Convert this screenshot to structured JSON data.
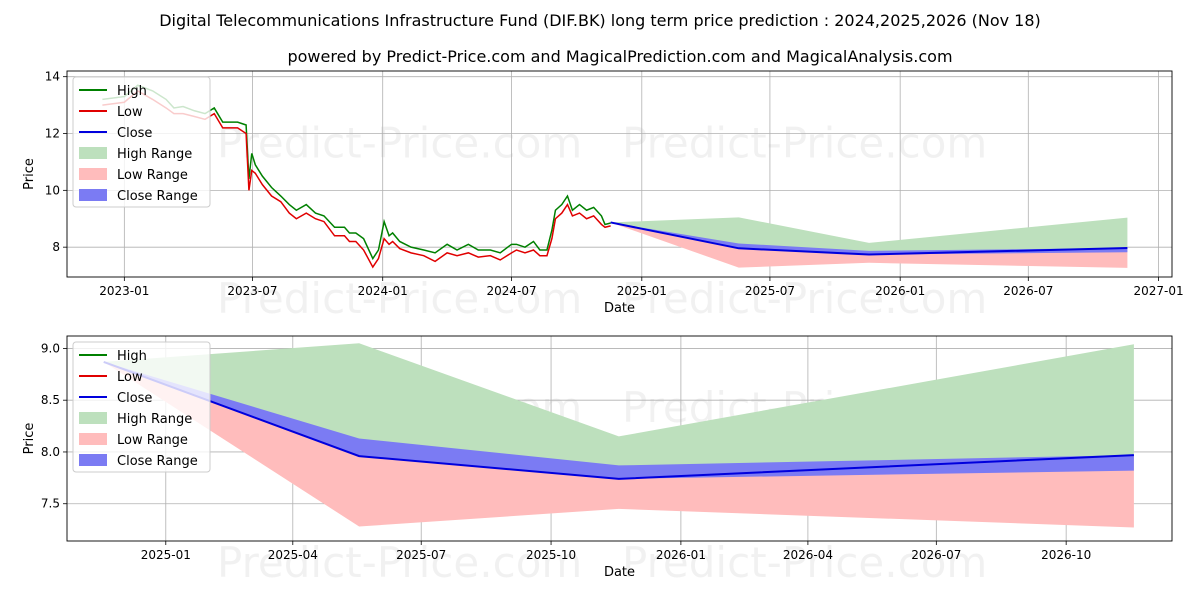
{
  "title": "Digital Telecommunications Infrastructure Fund (DIF.BK) long term price prediction : 2024,2025,2026 (Nov 18)",
  "subtitle": "powered by Predict-Price.com and MagicalPrediction.com and MagicalAnalysis.com",
  "watermark": "Predict-Price.com",
  "colors": {
    "high": "#008000",
    "low": "#e00000",
    "close": "#0000dd",
    "high_range": "#bde0bd",
    "low_range": "#ffbcbc",
    "close_range": "#7b7bf3"
  },
  "chart_data": [
    {
      "type": "line",
      "xlabel": "Date",
      "ylabel": "Price",
      "xticks": [
        "2023-01",
        "2023-07",
        "2024-01",
        "2024-07",
        "2025-01",
        "2025-07",
        "2026-01",
        "2026-07",
        "2027-01"
      ],
      "yticks": [
        8,
        10,
        12,
        14
      ],
      "xlim": [
        "2022-10-12",
        "2027-01-20"
      ],
      "ylim": [
        6.95,
        14.2
      ],
      "grid": true,
      "legend": "upper-left",
      "legend_entries": [
        "High",
        "Low",
        "Close",
        "High Range",
        "Low Range",
        "Close Range"
      ],
      "history": {
        "dates": [
          "2022-12-01",
          "2023-01-01",
          "2023-01-20",
          "2023-02-10",
          "2023-03-01",
          "2023-03-12",
          "2023-03-25",
          "2023-04-10",
          "2023-04-25",
          "2023-05-08",
          "2023-05-20",
          "2023-06-10",
          "2023-06-22",
          "2023-06-26",
          "2023-06-30",
          "2023-07-05",
          "2023-07-15",
          "2023-07-28",
          "2023-08-10",
          "2023-08-22",
          "2023-09-01",
          "2023-09-15",
          "2023-09-28",
          "2023-10-10",
          "2023-10-25",
          "2023-11-08",
          "2023-11-15",
          "2023-11-24",
          "2023-12-05",
          "2023-12-18",
          "2023-12-26",
          "2024-01-03",
          "2024-01-10",
          "2024-01-15",
          "2024-01-25",
          "2024-02-10",
          "2024-02-28",
          "2024-03-15",
          "2024-04-01",
          "2024-04-15",
          "2024-05-01",
          "2024-05-15",
          "2024-06-01",
          "2024-06-15",
          "2024-07-01",
          "2024-07-08",
          "2024-07-20",
          "2024-08-01",
          "2024-08-10",
          "2024-08-20",
          "2024-08-27",
          "2024-09-01",
          "2024-09-10",
          "2024-09-18",
          "2024-09-25",
          "2024-10-05",
          "2024-10-15",
          "2024-10-25",
          "2024-11-05",
          "2024-11-10",
          "2024-11-18"
        ],
        "high": [
          13.2,
          13.3,
          13.7,
          13.5,
          13.2,
          12.9,
          12.95,
          12.8,
          12.7,
          12.9,
          12.4,
          12.4,
          12.3,
          10.4,
          11.3,
          10.9,
          10.5,
          10.1,
          9.8,
          9.5,
          9.3,
          9.5,
          9.2,
          9.1,
          8.7,
          8.7,
          8.5,
          8.5,
          8.3,
          7.6,
          7.9,
          8.9,
          8.4,
          8.5,
          8.2,
          8.0,
          7.9,
          7.8,
          8.1,
          7.9,
          8.1,
          7.9,
          7.9,
          7.8,
          8.1,
          8.1,
          8.0,
          8.2,
          7.9,
          7.9,
          8.6,
          9.3,
          9.5,
          9.8,
          9.3,
          9.5,
          9.3,
          9.4,
          9.1,
          8.8,
          8.85
        ],
        "low": [
          13.0,
          13.1,
          13.5,
          13.2,
          12.9,
          12.7,
          12.7,
          12.6,
          12.5,
          12.7,
          12.2,
          12.2,
          12.0,
          10.0,
          10.7,
          10.6,
          10.2,
          9.8,
          9.6,
          9.2,
          9.0,
          9.2,
          9.0,
          8.9,
          8.4,
          8.4,
          8.2,
          8.2,
          7.9,
          7.3,
          7.6,
          8.3,
          8.1,
          8.2,
          7.95,
          7.8,
          7.7,
          7.5,
          7.8,
          7.7,
          7.8,
          7.65,
          7.7,
          7.55,
          7.8,
          7.9,
          7.8,
          7.9,
          7.7,
          7.7,
          8.3,
          9.0,
          9.2,
          9.5,
          9.1,
          9.2,
          9.0,
          9.1,
          8.8,
          8.7,
          8.75
        ]
      },
      "forecast": {
        "dates": [
          "2024-11-18",
          "2025-05-18",
          "2025-11-18",
          "2026-11-18"
        ],
        "close": [
          8.87,
          7.96,
          7.74,
          7.97
        ],
        "high_range_upper": [
          8.87,
          9.05,
          8.15,
          9.04
        ],
        "low_range_lower": [
          8.87,
          7.28,
          7.45,
          7.27
        ],
        "close_range_upper": [
          8.87,
          8.13,
          7.87,
          7.97
        ],
        "close_range_lower": [
          8.87,
          7.96,
          7.74,
          7.82
        ]
      }
    },
    {
      "type": "line",
      "xlabel": "Date",
      "ylabel": "Price",
      "xticks": [
        "2025-01",
        "2025-04",
        "2025-07",
        "2025-10",
        "2026-01",
        "2026-04",
        "2026-07",
        "2026-10"
      ],
      "yticks": [
        7.5,
        8.0,
        8.5,
        9.0
      ],
      "xlim": [
        "2024-10-23",
        "2026-12-15"
      ],
      "ylim": [
        7.14,
        9.12
      ],
      "grid": true,
      "legend": "upper-left",
      "legend_entries": [
        "High",
        "Low",
        "Close",
        "High Range",
        "Low Range",
        "Close Range"
      ],
      "forecast": {
        "dates": [
          "2024-11-18",
          "2025-05-18",
          "2025-11-18",
          "2026-11-18"
        ],
        "close": [
          8.87,
          7.96,
          7.74,
          7.97
        ],
        "high_range_upper": [
          8.87,
          9.05,
          8.15,
          9.04
        ],
        "low_range_lower": [
          8.87,
          7.28,
          7.45,
          7.27
        ],
        "close_range_upper": [
          8.87,
          8.13,
          7.87,
          7.97
        ],
        "close_range_lower": [
          8.87,
          7.96,
          7.74,
          7.82
        ]
      }
    }
  ]
}
